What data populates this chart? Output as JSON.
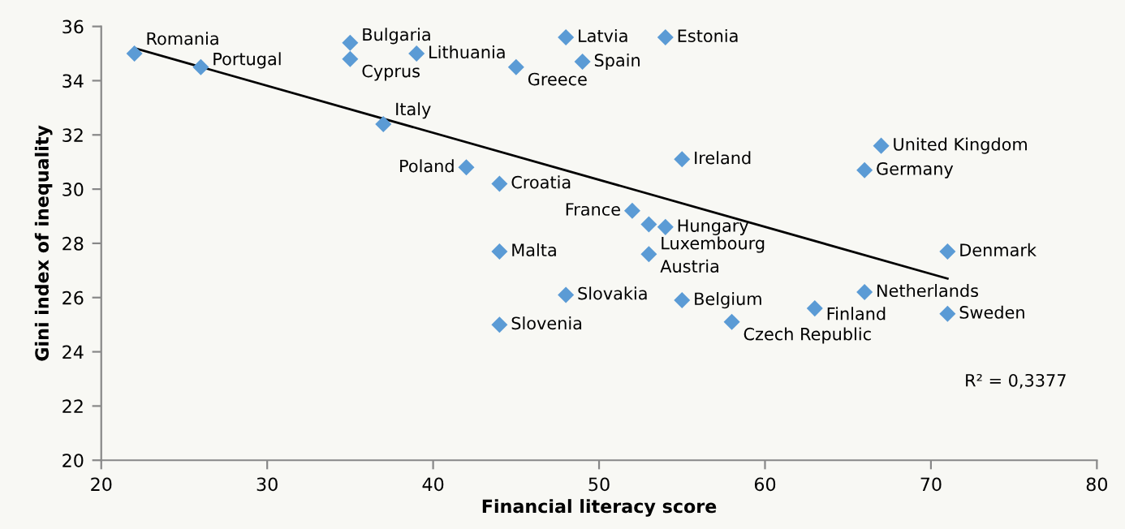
{
  "chart_data": {
    "type": "scatter",
    "xlabel": "Financial literacy score",
    "ylabel": "Gini index of inequality",
    "xlim": [
      20,
      80
    ],
    "xticks": [
      20,
      30,
      40,
      50,
      60,
      70,
      80
    ],
    "ylim": [
      20,
      36
    ],
    "yticks": [
      20,
      22,
      24,
      26,
      28,
      30,
      32,
      34,
      36
    ],
    "grid": false,
    "legend": false,
    "marker": "diamond",
    "series": [
      {
        "color": "#5b9bd5",
        "x": [
          22,
          26,
          35,
          35,
          39,
          45,
          37,
          42,
          44,
          44,
          44,
          48,
          54,
          49,
          55,
          67,
          66,
          52,
          53,
          54,
          53,
          71,
          48,
          55,
          66,
          63,
          58,
          71
        ],
        "values": [
          35.0,
          34.5,
          35.4,
          34.8,
          35.0,
          34.5,
          32.4,
          30.8,
          30.2,
          27.7,
          25.0,
          35.6,
          35.6,
          34.7,
          31.1,
          31.6,
          30.7,
          29.2,
          28.7,
          28.6,
          27.6,
          27.7,
          26.1,
          25.9,
          26.2,
          25.6,
          25.1,
          25.4
        ]
      },
      {
        "type": "line",
        "color": "#000000",
        "marker": "none",
        "x": [
          22,
          71
        ],
        "values": [
          35.2,
          26.7
        ]
      }
    ],
    "annotations": [
      {
        "text": "Romania",
        "x": 22,
        "y": 35.0
      },
      {
        "text": "Portugal",
        "x": 26,
        "y": 34.5
      },
      {
        "text": "Bulgaria",
        "x": 35,
        "y": 35.4
      },
      {
        "text": "Cyprus",
        "x": 35,
        "y": 34.8
      },
      {
        "text": "Lithuania",
        "x": 39,
        "y": 35.0
      },
      {
        "text": "Greece",
        "x": 45,
        "y": 34.5
      },
      {
        "text": "Italy",
        "x": 37,
        "y": 32.4
      },
      {
        "text": "Poland",
        "x": 42,
        "y": 30.8
      },
      {
        "text": "Croatia",
        "x": 44,
        "y": 30.2
      },
      {
        "text": "Malta",
        "x": 44,
        "y": 27.7
      },
      {
        "text": "Slovenia",
        "x": 44,
        "y": 25.0
      },
      {
        "text": "Latvia",
        "x": 48,
        "y": 35.6
      },
      {
        "text": "Estonia",
        "x": 54,
        "y": 35.6
      },
      {
        "text": "Spain",
        "x": 49,
        "y": 34.7
      },
      {
        "text": "Ireland",
        "x": 55,
        "y": 31.1
      },
      {
        "text": "United Kingdom",
        "x": 67,
        "y": 31.6
      },
      {
        "text": "Germany",
        "x": 66,
        "y": 30.7
      },
      {
        "text": "France",
        "x": 52,
        "y": 29.2
      },
      {
        "text": "Luxembourg",
        "x": 53,
        "y": 28.7
      },
      {
        "text": "Hungary",
        "x": 54,
        "y": 28.6
      },
      {
        "text": "Austria",
        "x": 53,
        "y": 27.6
      },
      {
        "text": "Denmark",
        "x": 71,
        "y": 27.7
      },
      {
        "text": "Slovakia",
        "x": 48,
        "y": 26.1
      },
      {
        "text": "Belgium",
        "x": 55,
        "y": 25.9
      },
      {
        "text": "Netherlands",
        "x": 66,
        "y": 26.2
      },
      {
        "text": "Finland",
        "x": 63,
        "y": 25.6
      },
      {
        "text": "Czech Republic",
        "x": 58,
        "y": 25.1
      },
      {
        "text": "Sweden",
        "x": 71,
        "y": 25.4
      },
      "R² = 0,3377"
    ]
  }
}
